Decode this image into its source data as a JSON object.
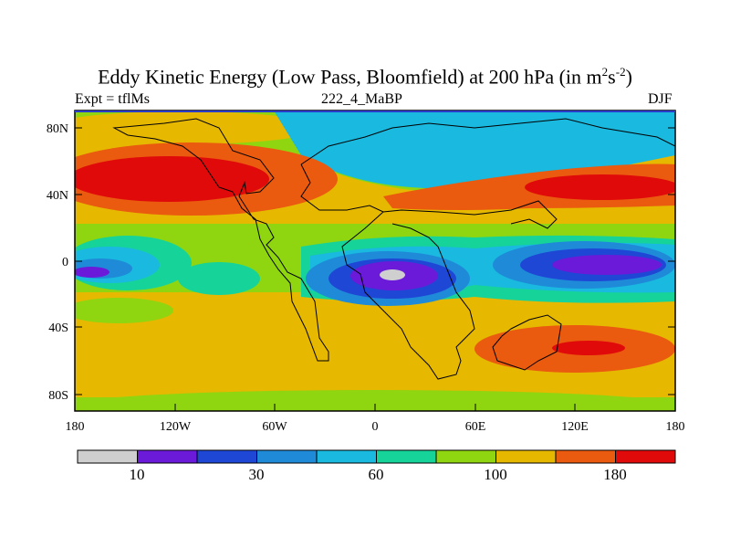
{
  "title": {
    "main": "Eddy Kinetic Energy (Low Pass, Bloomfield) at 200 hPa (in m",
    "sup1": "2",
    "mid": "s",
    "sup2": "-2",
    "close": ")"
  },
  "subtitle_left": "Expt = tflMs",
  "subtitle_center": "222_4_MaBP",
  "subtitle_right": "DJF",
  "y_ticks": [
    "80N",
    "40N",
    "0",
    "40S",
    "80S"
  ],
  "x_ticks": [
    "180",
    "120W",
    "60W",
    "0",
    "60E",
    "120E",
    "180"
  ],
  "colorbar": {
    "colors": [
      "#cfcfcf",
      "#6a1ad8",
      "#1f47d6",
      "#1f8bd8",
      "#19b9e0",
      "#16d39a",
      "#8fd610",
      "#e6b800",
      "#ea5a0f",
      "#e00a0a"
    ],
    "labels": [
      "10",
      "30",
      "60",
      "100",
      "180"
    ]
  },
  "palette": {
    "land_outline": "#000000",
    "frame": "#000000"
  }
}
